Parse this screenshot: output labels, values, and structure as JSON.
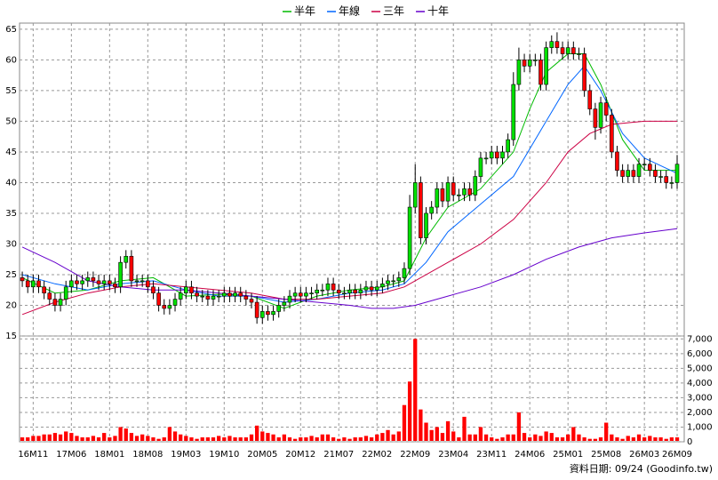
{
  "chart_data": {
    "type": "candlestick",
    "categories": [
      null,
      null,
      "16M11",
      null,
      null,
      null,
      null,
      null,
      null,
      "17M06",
      null,
      null,
      null,
      null,
      null,
      null,
      "18M01",
      null,
      null,
      null,
      null,
      null,
      null,
      "18M08",
      null,
      null,
      null,
      null,
      null,
      null,
      "19M03",
      null,
      null,
      null,
      null,
      null,
      null,
      "19M10",
      null,
      null,
      null,
      null,
      null,
      null,
      "20M05",
      null,
      null,
      null,
      null,
      null,
      null,
      "20M12",
      null,
      null,
      null,
      null,
      null,
      null,
      "21M07",
      null,
      null,
      null,
      null,
      null,
      null,
      "22M02",
      null,
      null,
      null,
      null,
      null,
      null,
      "22M09",
      null,
      null,
      null,
      null,
      null,
      null,
      "23M04",
      null,
      null,
      null,
      null,
      null,
      null,
      "23M11",
      null,
      null,
      null,
      null,
      null,
      null,
      "24M06",
      null,
      null,
      null,
      null,
      null,
      null,
      "25M01",
      null,
      null,
      null,
      null,
      null,
      null,
      "25M08",
      null,
      null,
      null,
      null,
      null,
      null,
      "26M03",
      null,
      null,
      null,
      null,
      null,
      "26M09"
    ],
    "up_color": "#00e000",
    "down_color": "#ff0000",
    "open": [
      24.5,
      24,
      23,
      24,
      23,
      22,
      21,
      20,
      21,
      23,
      24,
      23.5,
      24,
      24.5,
      24,
      23.5,
      24,
      23.5,
      23,
      27,
      28,
      24,
      24,
      24,
      23,
      22,
      20,
      19.5,
      20,
      21,
      22,
      23,
      22,
      21.5,
      21.5,
      21,
      21.5,
      21.5,
      22,
      21.5,
      22,
      21.5,
      21,
      20.5,
      18,
      19,
      18.5,
      19,
      20,
      20.5,
      21.5,
      22,
      21.5,
      22,
      22,
      22.5,
      22.5,
      23.5,
      22.5,
      22,
      22,
      22.5,
      22,
      22.5,
      23,
      22.5,
      23,
      23.5,
      24,
      24,
      24.5,
      26,
      36,
      40,
      31,
      35,
      36,
      39,
      37,
      40,
      38,
      38,
      39,
      38,
      41,
      44,
      44,
      45,
      44,
      45,
      47,
      56,
      60,
      59,
      60,
      60,
      56,
      62,
      63,
      62,
      61,
      62,
      61,
      61,
      55,
      52,
      49,
      53,
      51,
      45,
      42,
      41,
      42,
      41,
      43,
      43,
      42,
      41,
      41,
      40,
      40
    ],
    "high": [
      25.5,
      25,
      25,
      25,
      24,
      23,
      22,
      22,
      24,
      25,
      25,
      25,
      25.5,
      25.5,
      25,
      25,
      25,
      24.5,
      28,
      29,
      29,
      25,
      25,
      25,
      24,
      23,
      21,
      21,
      22,
      23,
      24,
      24,
      23,
      22.5,
      22.5,
      22.5,
      22.5,
      23,
      23,
      23,
      23,
      22.5,
      22,
      21.5,
      20,
      20,
      20,
      21,
      21.5,
      22.5,
      23,
      23,
      23,
      23,
      23.5,
      23.5,
      24.5,
      24.5,
      23.5,
      23,
      23.5,
      23.5,
      23.5,
      24,
      24,
      24,
      24.5,
      25,
      25,
      25.5,
      27,
      38,
      43,
      41,
      36,
      37,
      40,
      40,
      41,
      41,
      39,
      40,
      40,
      42,
      45,
      45,
      46,
      46,
      46,
      48,
      58,
      62,
      61,
      61,
      61,
      61,
      63,
      64,
      64.5,
      63,
      63,
      63,
      62,
      62,
      56,
      53,
      54,
      54,
      52,
      46,
      43,
      43,
      43,
      44,
      44,
      44,
      43,
      42,
      42,
      41,
      44.5
    ],
    "low": [
      23,
      22,
      22,
      22,
      21,
      20,
      19,
      19,
      20,
      22,
      22.5,
      22.5,
      23,
      23,
      22.5,
      22.5,
      22.5,
      22,
      22,
      26,
      23,
      23,
      23,
      22,
      21,
      19,
      18.5,
      18.5,
      19,
      20,
      21,
      21,
      20.5,
      20.5,
      20,
      20,
      20.5,
      20.5,
      20.5,
      20.5,
      20.5,
      20,
      19.5,
      17,
      17,
      17.5,
      17.5,
      18,
      19,
      19.5,
      20.5,
      20.5,
      20.5,
      21,
      21,
      21.5,
      21.5,
      21.5,
      21,
      21,
      21,
      21,
      21,
      21.5,
      21.5,
      21.5,
      22,
      22.5,
      23,
      23,
      23.5,
      25,
      35,
      30,
      30,
      34,
      35,
      36,
      36,
      37,
      37,
      37,
      37,
      37,
      40,
      43,
      43,
      43,
      43,
      44,
      46,
      55,
      58,
      58,
      59,
      55,
      55,
      61,
      61,
      60,
      60,
      60,
      60,
      54,
      51,
      47,
      48,
      50,
      44,
      41,
      40,
      40,
      40,
      40,
      42,
      41,
      40,
      40,
      39,
      39,
      39
    ],
    "close": [
      24,
      23,
      24,
      23,
      22,
      21,
      20,
      21,
      23,
      24,
      23.5,
      24,
      24.5,
      24,
      23.5,
      24,
      23.5,
      23,
      27,
      28,
      24,
      24,
      24,
      23,
      22,
      20,
      19.5,
      20,
      21,
      22,
      23,
      22,
      21.5,
      21.5,
      21,
      21.5,
      21.5,
      22,
      21.5,
      22,
      21.5,
      21,
      20.5,
      18,
      19,
      18.5,
      19,
      20,
      20.5,
      21.5,
      22,
      21.5,
      22,
      22,
      22.5,
      22.5,
      23.5,
      22.5,
      22,
      22,
      22.5,
      22,
      22.5,
      23,
      22.5,
      23,
      23.5,
      24,
      24,
      24.5,
      26,
      36,
      40,
      31,
      35,
      36,
      39,
      37,
      40,
      38,
      38,
      39,
      38,
      41,
      44,
      44,
      45,
      44,
      45,
      47,
      56,
      60,
      59,
      60,
      60,
      56,
      62,
      63,
      62,
      61,
      62,
      61,
      61,
      55,
      52,
      49,
      53,
      51,
      45,
      42,
      41,
      42,
      41,
      43,
      43,
      42,
      41,
      41,
      40,
      40,
      43
    ],
    "volume": {
      "color": "#ff0000",
      "values": [
        300,
        300,
        400,
        400,
        500,
        500,
        600,
        500,
        700,
        600,
        400,
        300,
        300,
        400,
        300,
        600,
        300,
        400,
        1000,
        900,
        600,
        400,
        500,
        400,
        300,
        200,
        300,
        1000,
        700,
        500,
        400,
        300,
        200,
        300,
        300,
        300,
        400,
        300,
        400,
        300,
        300,
        300,
        500,
        1100,
        700,
        600,
        500,
        300,
        500,
        300,
        200,
        300,
        300,
        400,
        300,
        500,
        500,
        300,
        200,
        300,
        200,
        300,
        300,
        400,
        300,
        500,
        600,
        800,
        500,
        700,
        2500,
        4100,
        7000,
        2200,
        1300,
        800,
        1000,
        600,
        1400,
        700,
        300,
        1700,
        500,
        500,
        1000,
        500,
        300,
        200,
        300,
        500,
        500,
        2000,
        600,
        300,
        500,
        400,
        700,
        600,
        300,
        300,
        500,
        1000,
        500,
        300,
        200,
        200,
        300,
        1300,
        500,
        300,
        200,
        400,
        300,
        500,
        300,
        400,
        300,
        300,
        200,
        300,
        300
      ]
    },
    "series": [
      {
        "name": "半年",
        "color": "#00bb00",
        "x": [
          0,
          6,
          12,
          18,
          24,
          30,
          36,
          42,
          48,
          54,
          60,
          66,
          70,
          74,
          78,
          84,
          90,
          93,
          96,
          100,
          103,
          106,
          110,
          114,
          120
        ],
        "values": [
          24.5,
          22,
          22.5,
          24,
          24.5,
          21.5,
          21.8,
          21.5,
          19.5,
          21.5,
          22.5,
          23,
          24,
          31,
          36,
          39,
          45,
          52,
          58,
          61,
          61,
          56,
          47,
          42,
          42
        ]
      },
      {
        "name": "年線",
        "color": "#0066ff",
        "x": [
          0,
          6,
          12,
          18,
          24,
          30,
          36,
          42,
          48,
          54,
          60,
          66,
          70,
          74,
          78,
          84,
          90,
          96,
          100,
          103,
          106,
          110,
          114,
          120
        ],
        "values": [
          25,
          23.5,
          22.5,
          23.5,
          24,
          22.5,
          21.5,
          21.5,
          20.5,
          21,
          22,
          22.5,
          23.5,
          27,
          32,
          36.5,
          41,
          50,
          56,
          59,
          55,
          48,
          44,
          41.5
        ]
      },
      {
        "name": "三年",
        "color": "#cc0044",
        "x": [
          0,
          6,
          12,
          18,
          24,
          30,
          36,
          42,
          48,
          54,
          60,
          66,
          70,
          78,
          84,
          90,
          96,
          100,
          104,
          108,
          114,
          120
        ],
        "values": [
          18.5,
          20.5,
          22,
          23,
          23.5,
          23,
          22.5,
          22,
          21,
          21,
          21.5,
          22,
          23,
          27,
          30,
          34,
          40,
          45,
          48,
          49.5,
          50,
          50
        ]
      },
      {
        "name": "十年",
        "color": "#6600cc",
        "x": [
          0,
          6,
          12,
          18,
          24,
          30,
          36,
          42,
          48,
          54,
          60,
          64,
          68,
          72,
          78,
          84,
          90,
          96,
          102,
          108,
          114,
          120
        ],
        "values": [
          29.5,
          27,
          24,
          23,
          22.5,
          22.5,
          22,
          21.5,
          21,
          20.5,
          20,
          19.5,
          19.5,
          20,
          21.5,
          23,
          25,
          27.5,
          29.5,
          31,
          31.8,
          32.5
        ]
      }
    ],
    "ylim": [
      15,
      66
    ],
    "yticks": [
      15,
      20,
      25,
      30,
      35,
      40,
      45,
      50,
      55,
      60,
      65
    ],
    "y2lim": [
      0,
      7200
    ],
    "y2ticks": [
      0,
      {
        "value": 1000,
        "label": "1,000"
      },
      {
        "value": 2000,
        "label": "2,000"
      },
      {
        "value": 3000,
        "label": "3,000"
      },
      {
        "value": 4000,
        "label": "4,000"
      },
      {
        "value": 5000,
        "label": "5,000"
      },
      {
        "value": 6000,
        "label": "6,000"
      },
      {
        "value": 7000,
        "label": "7,000"
      }
    ],
    "grid": true,
    "legend": "top",
    "footnote": "資料日期: 09/24 (Goodinfo.tw)"
  }
}
